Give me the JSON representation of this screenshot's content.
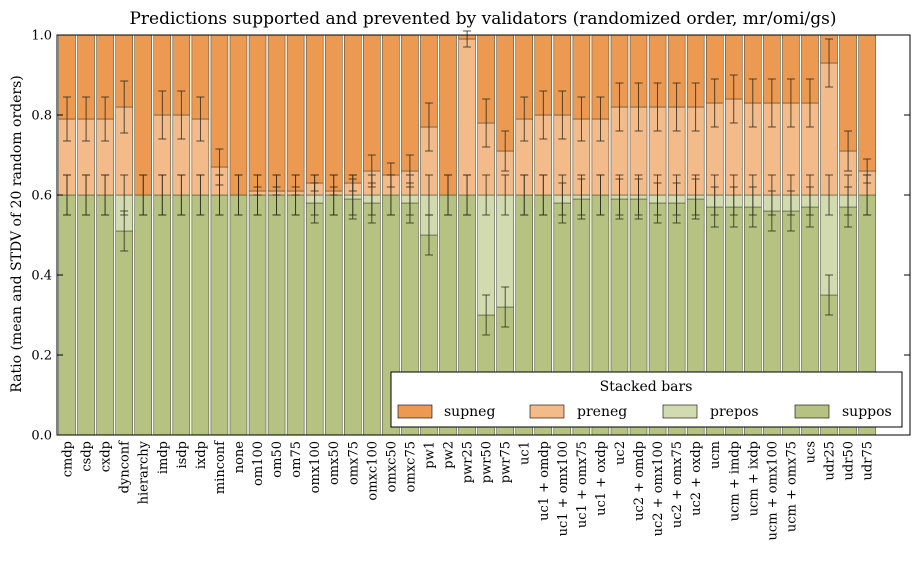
{
  "chart_data": {
    "type": "bar",
    "stacked": true,
    "title": "Predictions supported and prevented by validators (randomized order, mr/omi/gs)",
    "xlabel": "",
    "ylabel": "Ratio (mean and STDV of 20 random orders)",
    "ylim": [
      0,
      1.0
    ],
    "yticks": [
      "0.0",
      "0.2",
      "0.4",
      "0.6",
      "0.8",
      "1.0"
    ],
    "grid": false,
    "legend": {
      "title": "Stacked bars",
      "placement": "lower-right",
      "entries": [
        "supneg",
        "preneg",
        "prepos",
        "suppos"
      ]
    },
    "colors": {
      "suppos": "#b5c281",
      "prepos": "#d2dbb0",
      "preneg": "#f4bb8a",
      "supneg": "#ec9a52"
    },
    "categories": [
      "cmdp",
      "csdp",
      "cxdp",
      "dynconf",
      "hierarchy",
      "imdp",
      "isdp",
      "ixdp",
      "minconf",
      "none",
      "om100",
      "om50",
      "om75",
      "omx100",
      "omx50",
      "omx75",
      "omxc100",
      "omxc50",
      "omxc75",
      "pw1",
      "pw2",
      "pwr25",
      "pwr50",
      "pwr75",
      "uc1",
      "uc1 + omdp",
      "uc1 + omx100",
      "uc1 + omx75",
      "uc1 + oxdp",
      "uc2",
      "uc2 + omdp",
      "uc2 + omx100",
      "uc2 + omx75",
      "uc2 + oxdp",
      "ucm",
      "ucm + imdp",
      "ucm + ixdp",
      "ucm + omx100",
      "ucm + omx75",
      "ucs",
      "udr25",
      "udr50",
      "udr75"
    ],
    "series": [
      {
        "name": "suppos",
        "values": [
          0.6,
          0.6,
          0.6,
          0.51,
          0.6,
          0.6,
          0.6,
          0.6,
          0.6,
          0.6,
          0.6,
          0.6,
          0.6,
          0.58,
          0.6,
          0.59,
          0.58,
          0.6,
          0.58,
          0.5,
          0.6,
          0.6,
          0.3,
          0.32,
          0.6,
          0.6,
          0.58,
          0.59,
          0.6,
          0.59,
          0.59,
          0.58,
          0.58,
          0.59,
          0.57,
          0.57,
          0.57,
          0.56,
          0.56,
          0.57,
          0.35,
          0.57,
          0.6
        ]
      },
      {
        "name": "prepos",
        "values": [
          0.0,
          0.0,
          0.0,
          0.09,
          0.0,
          0.0,
          0.0,
          0.0,
          0.0,
          0.0,
          0.0,
          0.0,
          0.0,
          0.02,
          0.0,
          0.01,
          0.02,
          0.0,
          0.02,
          0.1,
          0.0,
          0.0,
          0.3,
          0.28,
          0.0,
          0.0,
          0.02,
          0.01,
          0.0,
          0.01,
          0.01,
          0.02,
          0.02,
          0.01,
          0.03,
          0.03,
          0.03,
          0.04,
          0.04,
          0.03,
          0.25,
          0.03,
          0.0
        ]
      },
      {
        "name": "preneg",
        "values": [
          0.19,
          0.19,
          0.19,
          0.22,
          0.0,
          0.2,
          0.2,
          0.19,
          0.07,
          0.0,
          0.01,
          0.01,
          0.01,
          0.03,
          0.01,
          0.03,
          0.06,
          0.05,
          0.06,
          0.17,
          0.0,
          0.39,
          0.18,
          0.11,
          0.19,
          0.2,
          0.2,
          0.19,
          0.19,
          0.22,
          0.22,
          0.22,
          0.22,
          0.22,
          0.23,
          0.24,
          0.23,
          0.23,
          0.23,
          0.23,
          0.33,
          0.11,
          0.06
        ]
      },
      {
        "name": "supneg",
        "values": [
          0.21,
          0.21,
          0.21,
          0.18,
          0.4,
          0.2,
          0.2,
          0.21,
          0.33,
          0.4,
          0.39,
          0.39,
          0.39,
          0.37,
          0.39,
          0.37,
          0.34,
          0.35,
          0.34,
          0.23,
          0.4,
          0.01,
          0.22,
          0.29,
          0.21,
          0.2,
          0.2,
          0.21,
          0.21,
          0.18,
          0.18,
          0.18,
          0.18,
          0.18,
          0.17,
          0.16,
          0.17,
          0.17,
          0.17,
          0.17,
          0.07,
          0.29,
          0.34
        ]
      }
    ],
    "errors": {
      "suppos": [
        0.05,
        0.05,
        0.05,
        0.05,
        0.05,
        0.05,
        0.05,
        0.05,
        0.05,
        0.05,
        0.05,
        0.05,
        0.05,
        0.05,
        0.05,
        0.05,
        0.05,
        0.05,
        0.05,
        0.05,
        0.05,
        0.05,
        0.05,
        0.05,
        0.05,
        0.05,
        0.05,
        0.05,
        0.05,
        0.05,
        0.05,
        0.05,
        0.05,
        0.05,
        0.05,
        0.05,
        0.05,
        0.05,
        0.05,
        0.05,
        0.05,
        0.05,
        0.05
      ],
      "prepos": [
        0.05,
        0.05,
        0.05,
        0.05,
        0.05,
        0.05,
        0.05,
        0.05,
        0.05,
        0.05,
        0.05,
        0.05,
        0.05,
        0.05,
        0.05,
        0.05,
        0.05,
        0.05,
        0.05,
        0.05,
        0.05,
        0.05,
        0.05,
        0.05,
        0.05,
        0.05,
        0.05,
        0.05,
        0.05,
        0.05,
        0.05,
        0.05,
        0.05,
        0.05,
        0.05,
        0.05,
        0.05,
        0.05,
        0.05,
        0.05,
        0.05,
        0.05,
        0.05
      ],
      "preneg": [
        0.055,
        0.055,
        0.055,
        0.065,
        0.0,
        0.06,
        0.06,
        0.055,
        0.045,
        0.0,
        0.01,
        0.01,
        0.01,
        0.02,
        0.01,
        0.02,
        0.04,
        0.03,
        0.04,
        0.06,
        0.0,
        0.02,
        0.06,
        0.05,
        0.055,
        0.06,
        0.06,
        0.055,
        0.055,
        0.06,
        0.06,
        0.06,
        0.06,
        0.06,
        0.06,
        0.06,
        0.06,
        0.06,
        0.06,
        0.06,
        0.06,
        0.05,
        0.03
      ]
    }
  }
}
